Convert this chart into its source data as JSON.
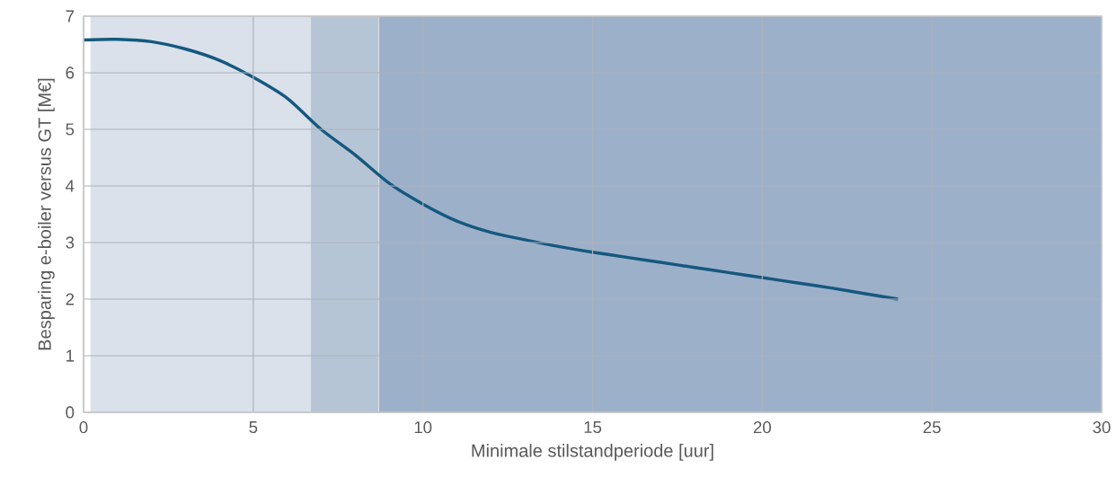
{
  "chart_data": {
    "type": "line",
    "xlabel": "Minimale stilstandperiode [uur]",
    "ylabel": "Besparing e-boiler versus GT [M€]",
    "x": [
      0,
      1,
      2,
      3,
      4,
      5,
      6,
      7,
      8,
      9,
      10,
      11,
      12,
      13,
      14,
      15,
      16,
      17,
      18,
      19,
      20,
      21,
      22,
      23,
      24
    ],
    "series": [
      {
        "color": "#15587f",
        "values": [
          6.58,
          6.59,
          6.55,
          6.42,
          6.22,
          5.92,
          5.55,
          5.0,
          4.55,
          4.05,
          3.68,
          3.38,
          3.18,
          3.05,
          2.93,
          2.83,
          2.74,
          2.65,
          2.56,
          2.47,
          2.38,
          2.29,
          2.2,
          2.1,
          2.0
        ]
      }
    ],
    "bands": [
      {
        "axis": "x",
        "from": 0.2,
        "to": 6.7,
        "color": "#dae1ea"
      },
      {
        "axis": "x",
        "from": 6.7,
        "to": 8.7,
        "color": "#b6c5d5"
      },
      {
        "axis": "x",
        "from": 8.7,
        "to": 30,
        "color": "#9db0ca"
      }
    ],
    "xlim": [
      0,
      30
    ],
    "ylim": [
      0,
      7
    ],
    "xticks": [
      0,
      5,
      10,
      15,
      20,
      25,
      30
    ],
    "yticks": [
      0,
      1,
      2,
      3,
      4,
      5,
      6,
      7
    ],
    "grid": true
  }
}
